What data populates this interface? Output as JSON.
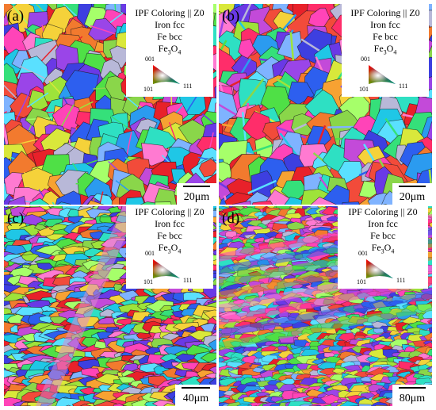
{
  "panels": [
    {
      "letter": "(a)",
      "legend": {
        "title": "IPF Coloring || Z0",
        "phase1": "Iron fcc",
        "phase2": "Fe bcc",
        "phase3_main": "Fe",
        "phase3_sub1": "3",
        "phase3_main2": "O",
        "phase3_sub2": "4",
        "corner_001": "001",
        "corner_101": "101",
        "corner_111": "111"
      },
      "scale_label": "20μm"
    },
    {
      "letter": "(b)",
      "legend": {
        "title": "IPF Coloring || Z0",
        "phase1": "Iron fcc",
        "phase2": "Fe bcc",
        "phase3_main": "Fe",
        "phase3_sub1": "3",
        "phase3_main2": "O",
        "phase3_sub2": "4",
        "corner_001": "001",
        "corner_101": "101",
        "corner_111": "111"
      },
      "scale_label": "20μm"
    },
    {
      "letter": "(c)",
      "legend": {
        "title": "IPF Coloring || Z0",
        "phase1": "Iron fcc",
        "phase2": "Fe bcc",
        "phase3_main": "Fe",
        "phase3_sub1": "3",
        "phase3_main2": "O",
        "phase3_sub2": "4",
        "corner_001": "001",
        "corner_101": "101",
        "corner_111": "111"
      },
      "scale_label": "40μm"
    },
    {
      "letter": "(d)",
      "legend": {
        "title": "IPF Coloring || Z0",
        "phase1": "Iron fcc",
        "phase2": "Fe bcc",
        "phase3_main": "Fe",
        "phase3_sub1": "3",
        "phase3_main2": "O",
        "phase3_sub2": "4",
        "corner_001": "001",
        "corner_101": "101",
        "corner_111": "111"
      },
      "scale_label": "80μm"
    }
  ],
  "colors": {
    "grain_palette": [
      "#e8212a",
      "#f24b3a",
      "#ff2d6a",
      "#ff44b8",
      "#c34ad9",
      "#9a45e8",
      "#6a39e6",
      "#3d3fe0",
      "#2d5fef",
      "#2b9bf0",
      "#1fc7e6",
      "#2ee0c3",
      "#35e07a",
      "#4fe046",
      "#9ee33a",
      "#d9e83b",
      "#f5d23a",
      "#f7a232",
      "#f27a2e",
      "#b8b8d8",
      "#7fb3ff",
      "#5ae0ff",
      "#a6ff6a",
      "#ff7ad1",
      "#8ad64a"
    ],
    "boundary": "#1a1a1a"
  }
}
